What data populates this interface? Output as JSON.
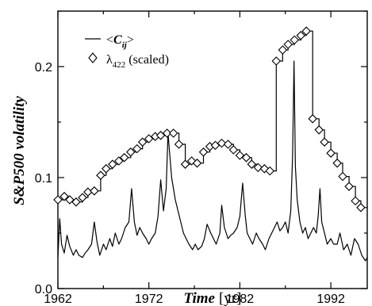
{
  "chart_data": {
    "type": "line",
    "xlabel": {
      "main": "Time",
      "unit": "[yr]"
    },
    "ylabel": "S&P500 volatility",
    "xlim": [
      1962,
      1996
    ],
    "ylim": [
      0.0,
      0.25
    ],
    "xticks": [
      1962,
      1972,
      1982,
      1992
    ],
    "xtick_labels": [
      "1962",
      "1972",
      "1982",
      "1992"
    ],
    "yticks": [
      0.0,
      0.1,
      0.2
    ],
    "ytick_labels": [
      "0.0",
      "0.1",
      "0.2"
    ],
    "legend": {
      "position": "top-left",
      "entries": [
        {
          "open": "<",
          "var": "C",
          "sub": "ij",
          "close": ">"
        },
        {
          "symbol": "λ",
          "sub": "422",
          "suffix": "(scaled)"
        }
      ]
    },
    "series": [
      {
        "name": "<C_ij>",
        "style": "line",
        "color": "#000000",
        "x": [
          1962.0,
          1962.2,
          1962.4,
          1962.7,
          1963.0,
          1963.3,
          1963.7,
          1964.0,
          1964.3,
          1964.7,
          1965.0,
          1965.3,
          1965.7,
          1966.0,
          1966.3,
          1966.6,
          1967.0,
          1967.3,
          1967.7,
          1968.0,
          1968.3,
          1968.7,
          1969.0,
          1969.4,
          1969.8,
          1970.1,
          1970.4,
          1970.7,
          1971.0,
          1971.3,
          1971.7,
          1972.0,
          1972.3,
          1972.7,
          1973.0,
          1973.3,
          1973.6,
          1973.9,
          1974.1,
          1974.3,
          1974.5,
          1974.7,
          1974.9,
          1975.2,
          1975.5,
          1975.8,
          1976.1,
          1976.4,
          1976.8,
          1977.1,
          1977.4,
          1977.8,
          1978.1,
          1978.4,
          1978.8,
          1979.1,
          1979.4,
          1979.8,
          1980.0,
          1980.3,
          1980.7,
          1981.0,
          1981.3,
          1981.7,
          1982.0,
          1982.3,
          1982.6,
          1982.8,
          1983.1,
          1983.4,
          1983.8,
          1984.1,
          1984.5,
          1984.8,
          1985.2,
          1985.5,
          1985.8,
          1986.1,
          1986.4,
          1986.7,
          1987.0,
          1987.3,
          1987.6,
          1987.8,
          1987.95,
          1988.1,
          1988.3,
          1988.6,
          1988.9,
          1989.2,
          1989.5,
          1989.8,
          1990.1,
          1990.4,
          1990.6,
          1990.8,
          1991.0,
          1991.3,
          1991.6,
          1992.0,
          1992.3,
          1992.7,
          1993.0,
          1993.4,
          1993.8,
          1994.2,
          1994.6,
          1995.0,
          1995.4,
          1995.8,
          1996.0
        ],
        "y": [
          0.028,
          0.063,
          0.04,
          0.032,
          0.048,
          0.038,
          0.03,
          0.035,
          0.03,
          0.028,
          0.032,
          0.035,
          0.04,
          0.06,
          0.042,
          0.03,
          0.04,
          0.035,
          0.045,
          0.038,
          0.05,
          0.04,
          0.045,
          0.055,
          0.06,
          0.09,
          0.06,
          0.048,
          0.055,
          0.05,
          0.045,
          0.04,
          0.045,
          0.05,
          0.065,
          0.098,
          0.07,
          0.09,
          0.14,
          0.12,
          0.1,
          0.09,
          0.08,
          0.07,
          0.06,
          0.05,
          0.045,
          0.04,
          0.035,
          0.04,
          0.035,
          0.038,
          0.045,
          0.058,
          0.05,
          0.045,
          0.04,
          0.05,
          0.075,
          0.055,
          0.045,
          0.048,
          0.05,
          0.055,
          0.065,
          0.095,
          0.065,
          0.05,
          0.045,
          0.04,
          0.05,
          0.045,
          0.04,
          0.035,
          0.045,
          0.05,
          0.055,
          0.06,
          0.052,
          0.055,
          0.06,
          0.05,
          0.07,
          0.12,
          0.205,
          0.11,
          0.08,
          0.06,
          0.05,
          0.055,
          0.045,
          0.05,
          0.055,
          0.05,
          0.065,
          0.09,
          0.06,
          0.05,
          0.04,
          0.045,
          0.04,
          0.04,
          0.05,
          0.035,
          0.04,
          0.03,
          0.045,
          0.04,
          0.03,
          0.025,
          0.028
        ]
      },
      {
        "name": "λ422 (scaled)",
        "style": "step",
        "marker": "diamond-open",
        "color": "#000000",
        "x": [
          1962.0,
          1962.7,
          1963.3,
          1964.0,
          1964.7,
          1965.3,
          1966.0,
          1966.7,
          1967.3,
          1968.0,
          1968.7,
          1969.3,
          1970.0,
          1970.7,
          1971.3,
          1972.0,
          1972.7,
          1973.3,
          1974.0,
          1974.7,
          1975.3,
          1976.0,
          1976.7,
          1977.3,
          1978.0,
          1978.7,
          1979.3,
          1980.0,
          1980.7,
          1981.3,
          1982.0,
          1982.7,
          1983.3,
          1984.0,
          1984.7,
          1985.3,
          1986.0,
          1986.7,
          1987.3,
          1988.0,
          1988.7,
          1989.3,
          1990.0,
          1990.7,
          1991.3,
          1992.0,
          1992.7,
          1993.3,
          1994.0,
          1994.7,
          1995.3
        ],
        "y": [
          0.08,
          0.083,
          0.08,
          0.078,
          0.082,
          0.087,
          0.088,
          0.102,
          0.108,
          0.112,
          0.115,
          0.118,
          0.123,
          0.126,
          0.132,
          0.135,
          0.137,
          0.138,
          0.14,
          0.14,
          0.13,
          0.112,
          0.115,
          0.113,
          0.123,
          0.128,
          0.129,
          0.131,
          0.13,
          0.125,
          0.12,
          0.118,
          0.112,
          0.109,
          0.108,
          0.106,
          0.205,
          0.215,
          0.22,
          0.224,
          0.228,
          0.232,
          0.153,
          0.143,
          0.132,
          0.122,
          0.113,
          0.101,
          0.092,
          0.079,
          0.073
        ]
      }
    ]
  }
}
